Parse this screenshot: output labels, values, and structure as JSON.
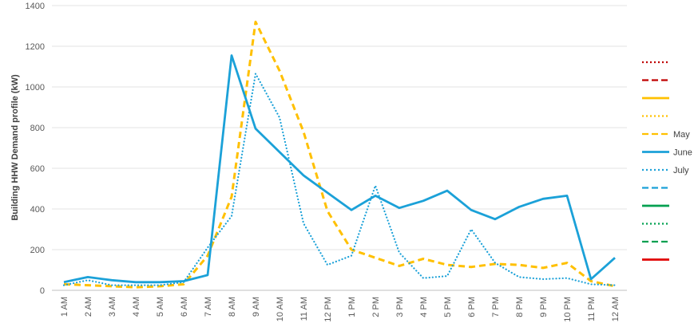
{
  "chart_data": {
    "type": "line",
    "ylabel": "Building HHW Demand profile (kW)",
    "xlabel": "",
    "ylim": [
      0,
      1400
    ],
    "yticks": [
      0,
      200,
      400,
      600,
      800,
      1000,
      1200,
      1400
    ],
    "grid": true,
    "legend_position": "right",
    "categories": [
      "1 AM",
      "2 AM",
      "3 AM",
      "4 AM",
      "5 AM",
      "6 AM",
      "7 AM",
      "8 AM",
      "9 AM",
      "10 AM",
      "11 AM",
      "12 PM",
      "1 PM",
      "2 PM",
      "3 PM",
      "4 PM",
      "5 PM",
      "6 PM",
      "7 PM",
      "8 PM",
      "9 PM",
      "10 PM",
      "11 PM",
      "12 AM"
    ],
    "series": [
      {
        "name": "",
        "color": "#c00000",
        "dash": "dotted",
        "values": null
      },
      {
        "name": "",
        "color": "#c00000",
        "dash": "dashed",
        "values": null
      },
      {
        "name": "",
        "color": "#ffc000",
        "dash": "solid",
        "values": null
      },
      {
        "name": "",
        "color": "#ffc000",
        "dash": "dotted",
        "values": null
      },
      {
        "name": "May",
        "color": "#ffc000",
        "dash": "dashed",
        "values": [
          30,
          25,
          20,
          15,
          20,
          30,
          170,
          460,
          1320,
          1080,
          780,
          390,
          200,
          160,
          120,
          155,
          125,
          115,
          130,
          125,
          110,
          135,
          45,
          20
        ]
      },
      {
        "name": "June",
        "color": "#1ba1d8",
        "dash": "solid",
        "values": [
          40,
          65,
          50,
          40,
          40,
          45,
          75,
          1155,
          795,
          680,
          565,
          480,
          395,
          465,
          405,
          440,
          490,
          395,
          350,
          410,
          450,
          465,
          55,
          160
        ]
      },
      {
        "name": "July",
        "color": "#1ba1d8",
        "dash": "dotted",
        "values": [
          25,
          50,
          25,
          25,
          25,
          40,
          210,
          365,
          1065,
          850,
          330,
          125,
          170,
          515,
          185,
          60,
          70,
          300,
          135,
          65,
          55,
          60,
          30,
          25
        ]
      },
      {
        "name": "",
        "color": "#1ba1d8",
        "dash": "dashed",
        "values": null
      },
      {
        "name": "",
        "color": "#00a050",
        "dash": "solid",
        "values": null
      },
      {
        "name": "",
        "color": "#00a050",
        "dash": "dotted",
        "values": null
      },
      {
        "name": "",
        "color": "#00a050",
        "dash": "dashed",
        "values": null
      },
      {
        "name": "",
        "color": "#e00000",
        "dash": "solid",
        "values": null
      }
    ]
  }
}
